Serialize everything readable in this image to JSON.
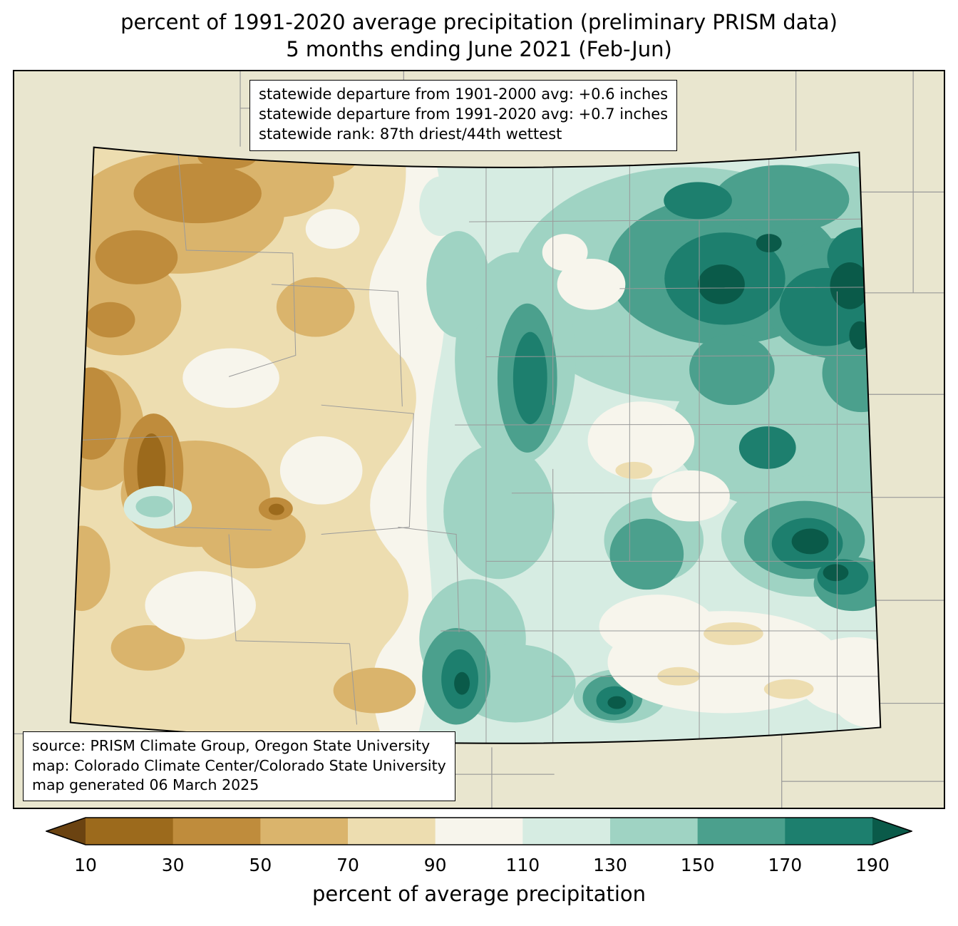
{
  "title": {
    "line1": "percent of 1991-2020 average precipitation (preliminary PRISM data)",
    "line2": "5 months ending June 2021 (Feb-Jun)"
  },
  "stats_box": {
    "lines": [
      "statewide departure from 1901-2000 avg: +0.6 inches",
      "statewide departure from 1991-2020 avg: +0.7 inches",
      "statewide rank: 87th driest/44th wettest"
    ]
  },
  "source_box": {
    "lines": [
      "source: PRISM Climate Group, Oregon State University",
      "map: Colorado Climate Center/Colorado State University",
      "map generated 06 March 2025"
    ]
  },
  "colorbar": {
    "label": "percent of average precipitation",
    "ticks": [
      "10",
      "30",
      "50",
      "70",
      "90",
      "110",
      "130",
      "150",
      "170",
      "190"
    ],
    "arrow_low_color": "#6b4311",
    "arrow_high_color": "#0a5a49",
    "segment_colors": [
      "#9c6a1c",
      "#bf8c3c",
      "#dab46c",
      "#edddb0",
      "#f7f5ec",
      "#d6ece2",
      "#9fd3c3",
      "#4ba08d",
      "#1d7f6e"
    ],
    "bin_edges": [
      10,
      30,
      50,
      70,
      90,
      110,
      130,
      150,
      170,
      190
    ]
  },
  "chart_data": {
    "type": "heatmap",
    "title": "percent of 1991-2020 average precipitation (preliminary PRISM data)",
    "subtitle": "5 months ending June 2021 (Feb-Jun)",
    "region": "Colorado, with county outlines and neighboring-state counties in background",
    "variable": "percent of average precipitation",
    "colorbar": {
      "bin_edges": [
        10,
        30,
        50,
        70,
        90,
        110,
        130,
        150,
        170,
        190
      ],
      "open_ended_low": "<10",
      "open_ended_high": ">190",
      "low_color_family": "brown (dry)",
      "high_color_family": "teal (wet)"
    },
    "annotations": [
      "statewide departure from 1901-2000 avg: +0.6 inches",
      "statewide departure from 1991-2020 avg: +0.7 inches",
      "statewide rank: 87th driest/44th wettest"
    ],
    "source_notes": [
      "source: PRISM Climate Group, Oregon State University",
      "map: Colorado Climate Center/Colorado State University",
      "map generated 06 March 2025"
    ],
    "readings": [
      {
        "area": "northwest Colorado",
        "percent_of_average": "30-70"
      },
      {
        "area": "west-central Colorado (driest pocket)",
        "percent_of_average": "10-30"
      },
      {
        "area": "central mountains / divide",
        "percent_of_average": "70-110"
      },
      {
        "area": "Front Range foothills and northeast plains",
        "percent_of_average": "130-190+"
      },
      {
        "area": "east-central plains",
        "percent_of_average": "130-190"
      },
      {
        "area": "southeast corner",
        "percent_of_average": "90-110 with small 70-90 spots"
      },
      {
        "area": "south-central Colorado",
        "percent_of_average": "110-170"
      }
    ]
  }
}
